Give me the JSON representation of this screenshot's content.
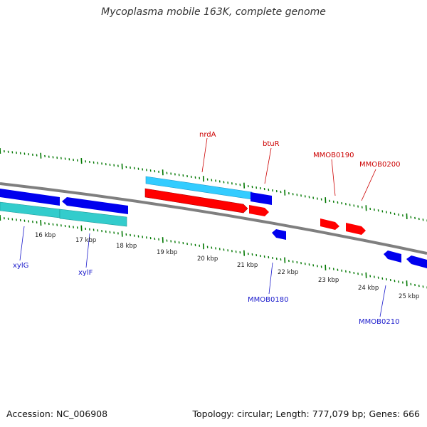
{
  "title": "Mycoplasma mobile 163K, complete genome",
  "footer": {
    "accession": "Accession: NC_006908",
    "summary": "Topology: circular; Length: 777,079 bp; Genes: 666"
  },
  "colors": {
    "backbone": "#7f7f7f",
    "gene_forward_cds": "#ff0000",
    "gene_reverse_cds": "#0000ee",
    "forward_strand_fill": "#33ccff",
    "reverse_strand_fill": "#33cccc",
    "tick": "#007700",
    "label_forward": "#cc0000",
    "label_reverse": "#1a1acc"
  },
  "ticks": [
    "16 kbp",
    "17 kbp",
    "18 kbp",
    "19 kbp",
    "20 kbp",
    "21 kbp",
    "22 kbp",
    "23 kbp",
    "24 kbp",
    "25 kbp"
  ],
  "gene_labels": {
    "nrdA": "nrdA",
    "btuR": "btuR",
    "MMOB0190": "MMOB0190",
    "MMOB0200": "MMOB0200",
    "xylG": "xylG",
    "xylF": "xylF",
    "MMOB0180": "MMOB0180",
    "MMOB0210": "MMOB0210"
  }
}
